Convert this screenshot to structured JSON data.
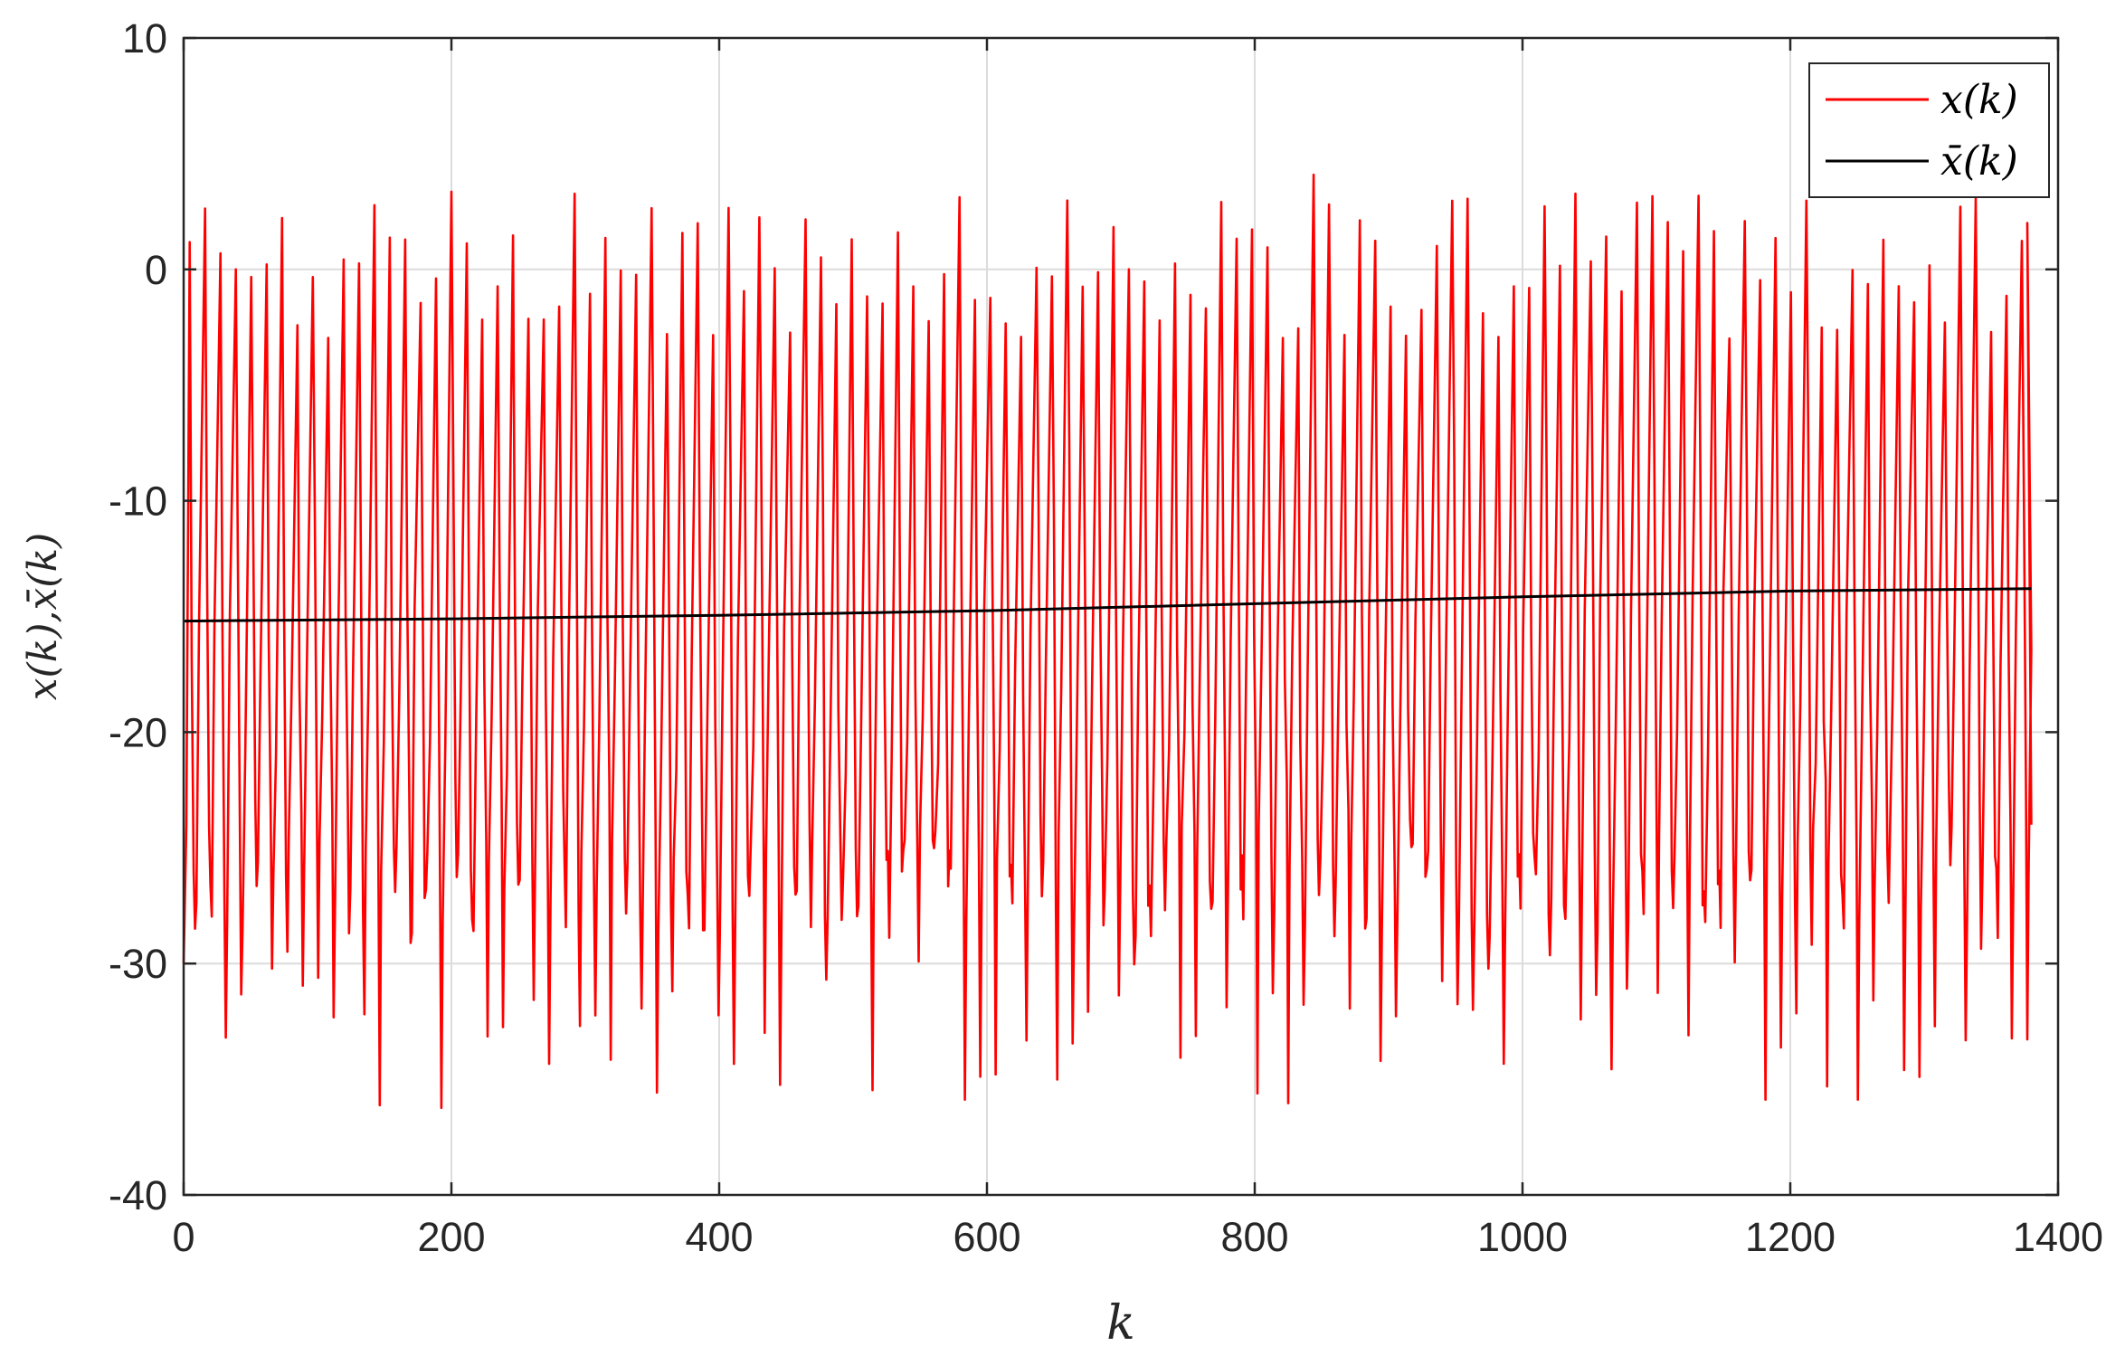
{
  "chart_data": {
    "type": "line",
    "xlabel": "k",
    "ylabel": "x(k),x̄(k)",
    "xlim": [
      0,
      1400
    ],
    "ylim": [
      -40,
      10
    ],
    "xticks": [
      0,
      200,
      400,
      600,
      800,
      1000,
      1200,
      1400
    ],
    "yticks": [
      10,
      0,
      -10,
      -20,
      -30,
      -40
    ],
    "xtick_labels": [
      "0",
      "200",
      "400",
      "600",
      "800",
      "1000",
      "1200",
      "1400"
    ],
    "ytick_labels": [
      "10",
      "0",
      "-10",
      "-20",
      "-30",
      "-40"
    ],
    "grid": true,
    "legend_position": "top-right",
    "series": [
      {
        "name": "x(k)",
        "color": "#ff0000",
        "style": "oscillating",
        "k_start": 0,
        "k_end": 1380,
        "period_k": 11.5,
        "peak_range": [
          -3,
          4.5
        ],
        "trough_range": [
          -36.5,
          -20
        ],
        "start_value": -30,
        "end_value": -24
      },
      {
        "name": "x̄(k)",
        "color": "#000000",
        "x": [
          0,
          200,
          400,
          600,
          800,
          1000,
          1200,
          1380
        ],
        "y": [
          -15.2,
          -15.1,
          -14.95,
          -14.75,
          -14.45,
          -14.15,
          -13.9,
          -13.8
        ]
      }
    ]
  }
}
